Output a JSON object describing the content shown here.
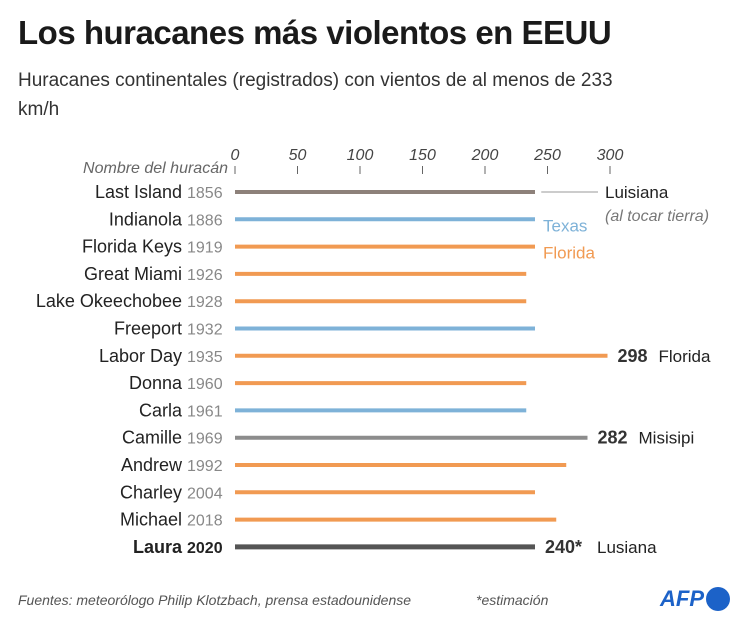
{
  "title": "Los huracanes más violentos en EEUU",
  "subtitle": "Huracanes continentales (registrados) con vientos de al menos de 233 km/h",
  "footer": "Fuentes: meteorólogo Philip Klotzbach, prensa estadounidense",
  "note": "*estimación",
  "logo": "AFP",
  "colors": {
    "Luisiana": "#8d817a",
    "Texas": "#7eb2d8",
    "Florida": "#f19a52",
    "Misisipi": "#8c8c8c",
    "Laura": "#555555"
  },
  "chart_data": {
    "type": "bar",
    "orientation": "horizontal",
    "category_header": "Nombre del huracán",
    "xlim": [
      0,
      300
    ],
    "xticks": [
      "0",
      "50",
      "100",
      "150",
      "200",
      "250",
      "300"
    ],
    "categories": [
      "Last Island",
      "Indianola",
      "Florida Keys",
      "Great Miami",
      "Lake Okeechobee",
      "Freeport",
      "Labor Day",
      "Donna",
      "Carla",
      "Camille",
      "Andrew",
      "Charley",
      "Michael",
      "Laura"
    ],
    "years": [
      "1856",
      "1886",
      "1919",
      "1926",
      "1928",
      "1932",
      "1935",
      "1960",
      "1961",
      "1969",
      "1992",
      "2004",
      "2018",
      "2020"
    ],
    "values": [
      240,
      240,
      240,
      233,
      233,
      240,
      298,
      233,
      233,
      282,
      265,
      240,
      257,
      240
    ],
    "states": [
      "Luisiana",
      "Texas",
      "Florida",
      "Florida",
      "Florida",
      "Texas",
      "Florida",
      "Florida",
      "Texas",
      "Misisipi",
      "Florida",
      "Florida",
      "Florida",
      "Laura"
    ],
    "legend": [
      {
        "label": "Luisiana",
        "sublabel": "(al tocar tierra)",
        "row": 0
      },
      {
        "label": "Texas",
        "row": 1
      },
      {
        "label": "Florida",
        "row": 2
      }
    ],
    "annotations": [
      {
        "row": 6,
        "value": "298",
        "label": "Florida"
      },
      {
        "row": 9,
        "value": "282",
        "label": "Misisipi"
      },
      {
        "row": 13,
        "value": "240*",
        "label": "Lusiana"
      }
    ]
  }
}
